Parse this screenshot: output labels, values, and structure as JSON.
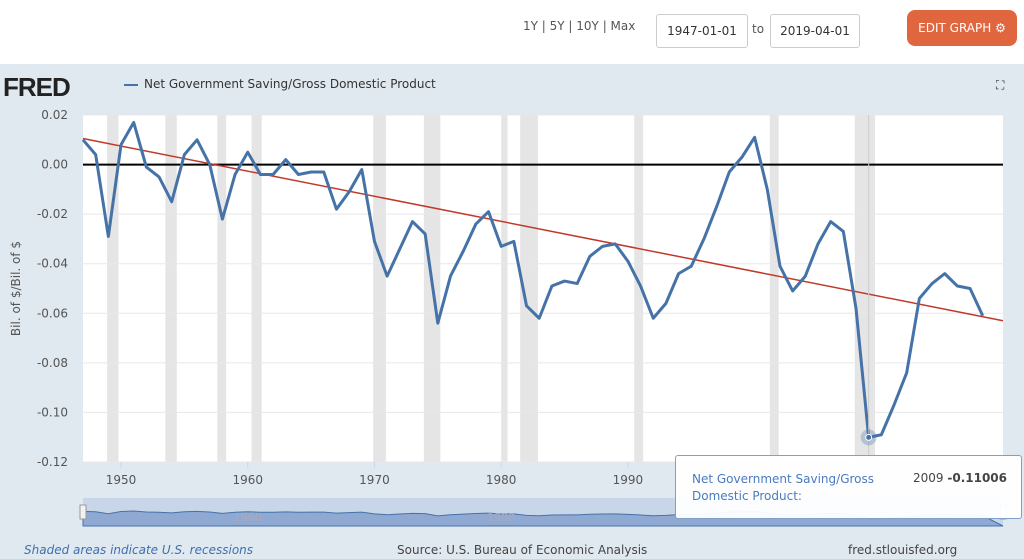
{
  "toolbar": {
    "ranges": "1Y | 5Y | 10Y | Max",
    "start": "1947-01-01",
    "to": "to",
    "end": "2019-04-01",
    "edit": "EDIT GRAPH ⚙"
  },
  "header": {
    "logo": "FRED",
    "legend": "Net Government Saving/Gross Domestic Product",
    "fullscreen": "⛶"
  },
  "tooltip": {
    "name": "Net Government Saving/Gross Domestic Product:",
    "year": "2009",
    "value": "-0.11006"
  },
  "footer": {
    "recessions": "Shaded areas indicate U.S. recessions",
    "source": "Source: U.S. Bureau of Economic Analysis",
    "site": "fred.stlouisfed.org"
  },
  "colors": {
    "series": "#4572a7",
    "trend": "#c0392b",
    "recession": "#e5e5e5",
    "zero": "#000000"
  },
  "chart_data": {
    "type": "line",
    "ylabel": "Bil. of $/Bil. of $",
    "xlim": [
      1947,
      2019.6
    ],
    "ylim": [
      -0.12,
      0.02
    ],
    "yticks": [
      "0.02",
      "0.00",
      "-0.02",
      "-0.04",
      "-0.06",
      "-0.08",
      "-0.10",
      "-0.12"
    ],
    "xticks": [
      "1950",
      "1960",
      "1970",
      "1980",
      "1990"
    ],
    "navigator_labels": [
      "1960",
      "1980"
    ],
    "x": [
      1947,
      1948,
      1949,
      1950,
      1951,
      1952,
      1953,
      1954,
      1955,
      1956,
      1957,
      1958,
      1959,
      1960,
      1961,
      1962,
      1963,
      1964,
      1965,
      1966,
      1967,
      1968,
      1969,
      1970,
      1971,
      1972,
      1973,
      1974,
      1975,
      1976,
      1977,
      1978,
      1979,
      1980,
      1981,
      1982,
      1983,
      1984,
      1985,
      1986,
      1987,
      1988,
      1989,
      1990,
      1991,
      1992,
      1993,
      1994,
      1995,
      1996,
      1997,
      1998,
      1999,
      2000,
      2001,
      2002,
      2003,
      2004,
      2005,
      2006,
      2007,
      2008,
      2009,
      2010,
      2011,
      2012,
      2013,
      2014,
      2015,
      2016,
      2017,
      2018
    ],
    "series": [
      {
        "name": "Net Government Saving/Gross Domestic Product",
        "values": [
          0.01,
          0.004,
          -0.029,
          0.008,
          0.017,
          -0.001,
          -0.005,
          -0.015,
          0.004,
          0.01,
          0.0,
          -0.022,
          -0.004,
          0.005,
          -0.004,
          -0.004,
          0.002,
          -0.004,
          -0.003,
          -0.003,
          -0.018,
          -0.011,
          -0.002,
          -0.031,
          -0.045,
          -0.034,
          -0.023,
          -0.028,
          -0.064,
          -0.045,
          -0.035,
          -0.024,
          -0.019,
          -0.033,
          -0.031,
          -0.057,
          -0.062,
          -0.049,
          -0.047,
          -0.048,
          -0.037,
          -0.033,
          -0.032,
          -0.039,
          -0.049,
          -0.062,
          -0.056,
          -0.044,
          -0.041,
          -0.03,
          -0.017,
          -0.003,
          0.003,
          0.011,
          -0.01,
          -0.041,
          -0.051,
          -0.045,
          -0.032,
          -0.023,
          -0.027,
          -0.058,
          -0.11006,
          -0.109,
          -0.097,
          -0.084,
          -0.054,
          -0.048,
          -0.044,
          -0.049,
          -0.05,
          -0.061
        ]
      }
    ],
    "trendline": {
      "x": [
        1947,
        2019.6
      ],
      "y": [
        0.0105,
        -0.063
      ]
    },
    "recessions": [
      [
        1948.9,
        1949.8
      ],
      [
        1953.5,
        1954.4
      ],
      [
        1957.6,
        1958.3
      ],
      [
        1960.3,
        1961.1
      ],
      [
        1969.9,
        1970.9
      ],
      [
        1973.9,
        1975.2
      ],
      [
        1980.0,
        1980.5
      ],
      [
        1981.5,
        1982.9
      ],
      [
        1990.5,
        1991.2
      ],
      [
        2001.2,
        2001.9
      ],
      [
        2007.9,
        2009.5
      ]
    ],
    "grid": true
  }
}
